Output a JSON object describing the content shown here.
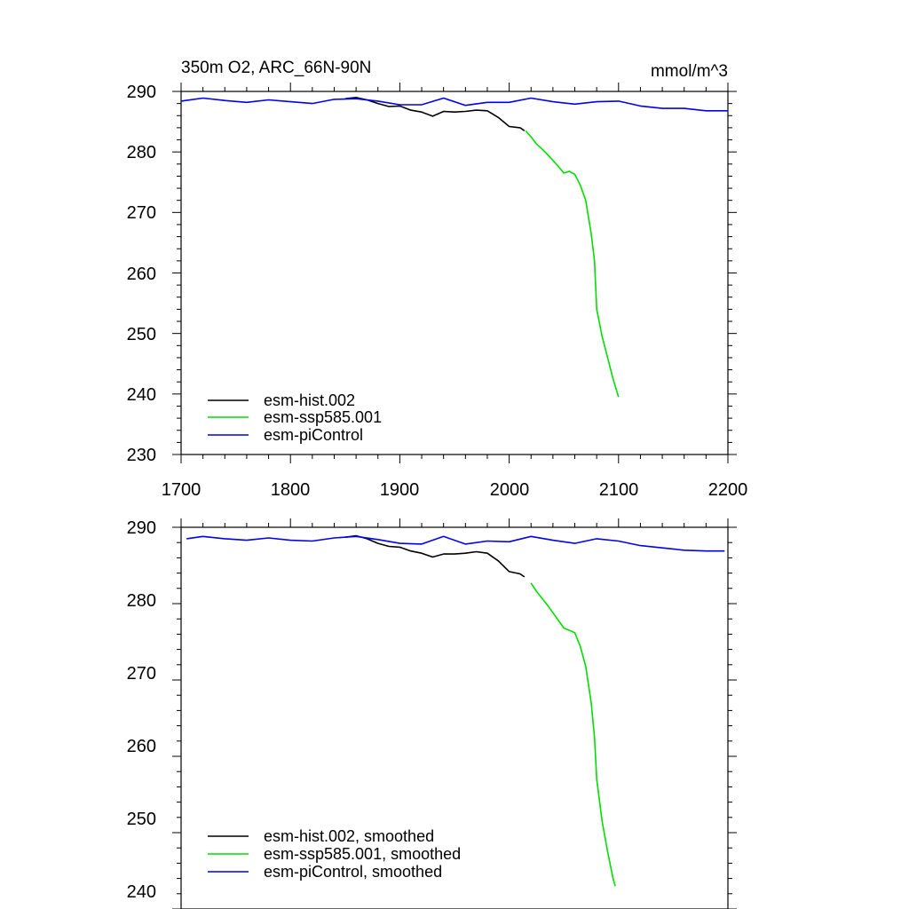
{
  "chart_data": [
    {
      "type": "line",
      "title": "350m O2, ARC_66N-90N",
      "units": "mmol/m^3",
      "xlim": [
        1700,
        2200
      ],
      "ylim": [
        230,
        290
      ],
      "xticks": [
        1700,
        1800,
        1900,
        2000,
        2100,
        2200
      ],
      "yticks": [
        230,
        240,
        250,
        260,
        270,
        280,
        290
      ],
      "xtick_labels": [
        "1700",
        "1800",
        "1900",
        "2000",
        "2100",
        "2200"
      ],
      "ytick_labels": [
        "230",
        "240",
        "250",
        "260",
        "270",
        "280",
        "290"
      ],
      "legend_position": "bottom-left",
      "series": [
        {
          "name": "esm-hist.002",
          "color": "#000000",
          "x": [
            1850,
            1860,
            1870,
            1880,
            1890,
            1900,
            1910,
            1920,
            1930,
            1940,
            1950,
            1960,
            1970,
            1980,
            1990,
            2000,
            2010,
            2014
          ],
          "y": [
            288.8,
            289.0,
            288.6,
            288.0,
            287.5,
            287.6,
            286.9,
            286.6,
            285.9,
            286.7,
            286.6,
            286.7,
            286.9,
            286.8,
            285.7,
            284.2,
            284.0,
            283.5
          ]
        },
        {
          "name": "esm-ssp585.001",
          "color": "#00dd00",
          "x": [
            2015,
            2020,
            2025,
            2030,
            2035,
            2040,
            2045,
            2050,
            2055,
            2060,
            2065,
            2070,
            2075,
            2078,
            2080,
            2085,
            2090,
            2095,
            2100
          ],
          "y": [
            283.5,
            282.5,
            281.3,
            280.5,
            279.6,
            278.6,
            277.6,
            276.5,
            276.8,
            276.3,
            274.5,
            272.0,
            266.5,
            262.0,
            254.0,
            249.5,
            246.0,
            242.5,
            239.5
          ]
        },
        {
          "name": "esm-piControl",
          "color": "#0000ee",
          "x": [
            1700,
            1720,
            1740,
            1760,
            1780,
            1800,
            1820,
            1840,
            1860,
            1880,
            1900,
            1920,
            1940,
            1960,
            1980,
            2000,
            2020,
            2040,
            2060,
            2080,
            2100,
            2120,
            2140,
            2160,
            2180,
            2200
          ],
          "y": [
            288.4,
            288.9,
            288.5,
            288.2,
            288.6,
            288.3,
            288.0,
            288.7,
            288.8,
            288.4,
            287.8,
            287.8,
            288.9,
            287.7,
            288.2,
            288.2,
            288.9,
            288.3,
            287.9,
            288.3,
            288.4,
            287.6,
            287.2,
            287.2,
            286.8,
            286.8
          ]
        }
      ]
    },
    {
      "type": "line",
      "title": "",
      "xlim": [
        1700,
        2200
      ],
      "ylim": [
        240,
        290
      ],
      "yticks": [
        240,
        250,
        260,
        270,
        280,
        290
      ],
      "ytick_labels": [
        "240",
        "250",
        "260",
        "270",
        "280",
        "290"
      ],
      "legend_position": "bottom-left",
      "series": [
        {
          "name": "esm-hist.002, smoothed",
          "color": "#000000",
          "x": [
            1850,
            1860,
            1870,
            1880,
            1890,
            1900,
            1910,
            1920,
            1930,
            1940,
            1950,
            1960,
            1970,
            1980,
            1990,
            2000,
            2010,
            2014
          ],
          "y": [
            288.7,
            288.9,
            288.5,
            287.9,
            287.5,
            287.4,
            286.9,
            286.6,
            286.1,
            286.5,
            286.5,
            286.6,
            286.8,
            286.6,
            285.6,
            284.2,
            283.9,
            283.5
          ]
        },
        {
          "name": "esm-ssp585.001, smoothed",
          "color": "#00dd00",
          "x": [
            2020,
            2025,
            2030,
            2035,
            2040,
            2045,
            2050,
            2055,
            2060,
            2065,
            2070,
            2075,
            2078,
            2080,
            2085,
            2090,
            2095,
            2097
          ],
          "y": [
            282.7,
            281.6,
            280.7,
            279.8,
            278.8,
            277.8,
            276.8,
            276.5,
            276.2,
            274.4,
            271.8,
            267.0,
            262.5,
            257.0,
            251.5,
            247.5,
            244.0,
            243.0
          ]
        },
        {
          "name": "esm-piControl, smoothed",
          "color": "#0000ee",
          "x": [
            1705,
            1720,
            1740,
            1760,
            1780,
            1800,
            1820,
            1840,
            1860,
            1880,
            1900,
            1920,
            1940,
            1960,
            1980,
            2000,
            2020,
            2040,
            2060,
            2080,
            2100,
            2120,
            2140,
            2160,
            2180,
            2197
          ],
          "y": [
            288.5,
            288.8,
            288.5,
            288.3,
            288.6,
            288.3,
            288.2,
            288.6,
            288.8,
            288.4,
            287.9,
            287.8,
            288.8,
            287.8,
            288.2,
            288.1,
            288.8,
            288.3,
            287.9,
            288.5,
            288.2,
            287.6,
            287.3,
            287.0,
            286.9,
            286.9
          ]
        }
      ]
    }
  ]
}
